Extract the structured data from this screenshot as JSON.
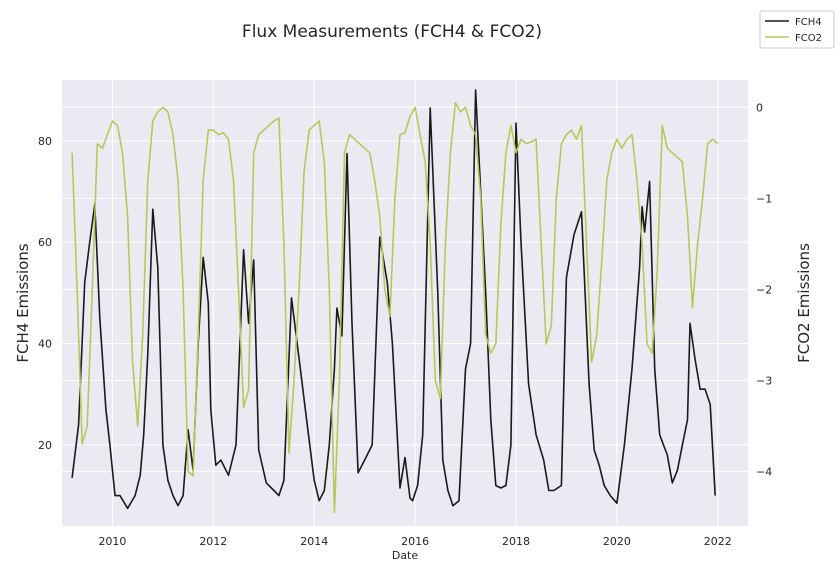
{
  "chart_data": {
    "type": "line",
    "title": "Flux Measurements (FCH4 & FCO2)",
    "xlabel": "Date",
    "ylabel_left": "FCH4 Emissions",
    "ylabel_right": "FCO2 Emissions",
    "xlim": [
      2009.0,
      2022.6
    ],
    "ylim_left": [
      4,
      92
    ],
    "ylim_right": [
      -4.6,
      0.3
    ],
    "x_ticks": [
      2010,
      2012,
      2014,
      2016,
      2018,
      2020,
      2022
    ],
    "y_ticks_left": [
      20,
      40,
      60,
      80
    ],
    "y_ticks_right": [
      0,
      -1,
      -2,
      -3,
      -4
    ],
    "grid": true,
    "legend_position": "top-right",
    "colors": {
      "background": "#eaeaf2",
      "grid": "#ffffff",
      "FCH4": "#1a1a1a",
      "FCO2": "#b5c95a"
    },
    "series": [
      {
        "name": "FCH4",
        "axis": "left",
        "x": [
          2009.2,
          2009.33,
          2009.45,
          2009.55,
          2009.65,
          2009.75,
          2009.87,
          2009.95,
          2010.05,
          2010.15,
          2010.3,
          2010.45,
          2010.55,
          2010.62,
          2010.7,
          2010.8,
          2010.9,
          2011.0,
          2011.1,
          2011.2,
          2011.3,
          2011.4,
          2011.5,
          2011.6,
          2011.7,
          2011.8,
          2011.9,
          2011.95,
          2012.05,
          2012.15,
          2012.3,
          2012.45,
          2012.6,
          2012.7,
          2012.8,
          2012.9,
          2013.05,
          2013.2,
          2013.3,
          2013.4,
          2013.55,
          2013.7,
          2013.85,
          2014.0,
          2014.1,
          2014.2,
          2014.3,
          2014.4,
          2014.45,
          2014.55,
          2014.65,
          2014.75,
          2014.87,
          2015.0,
          2015.15,
          2015.3,
          2015.45,
          2015.55,
          2015.7,
          2015.8,
          2015.9,
          2015.95,
          2016.05,
          2016.15,
          2016.3,
          2016.45,
          2016.55,
          2016.65,
          2016.75,
          2016.87,
          2017.0,
          2017.1,
          2017.2,
          2017.3,
          2017.4,
          2017.5,
          2017.6,
          2017.7,
          2017.8,
          2017.9,
          2018.0,
          2018.1,
          2018.25,
          2018.4,
          2018.55,
          2018.65,
          2018.75,
          2018.9,
          2019.0,
          2019.15,
          2019.3,
          2019.45,
          2019.55,
          2019.65,
          2019.75,
          2019.87,
          2020.0,
          2020.15,
          2020.3,
          2020.45,
          2020.5,
          2020.55,
          2020.65,
          2020.75,
          2020.85,
          2021.0,
          2021.1,
          2021.2,
          2021.3,
          2021.4,
          2021.45,
          2021.55,
          2021.65,
          2021.75,
          2021.85,
          2021.95
        ],
        "values": [
          13.5,
          24,
          52,
          60,
          67.5,
          45,
          27,
          20,
          10,
          10,
          7.5,
          10,
          14,
          22,
          38,
          66.5,
          55,
          20,
          13,
          10,
          8,
          10,
          23,
          15,
          40,
          57,
          48,
          27,
          16,
          17,
          14,
          20,
          58.5,
          44,
          56.5,
          19,
          12.5,
          11,
          10,
          13,
          49,
          37,
          25,
          13,
          9,
          11,
          20,
          35,
          47,
          41.5,
          77.5,
          44,
          14.5,
          17,
          20,
          61,
          52,
          40,
          11.5,
          17.5,
          9.5,
          9,
          12,
          22,
          86.5,
          50,
          17,
          11,
          8,
          9,
          35,
          40,
          90,
          70,
          50,
          25,
          12,
          11.5,
          12,
          20,
          83.5,
          60,
          32,
          22,
          17,
          11,
          11,
          12,
          53,
          61.5,
          66,
          32,
          19,
          16,
          12,
          10,
          8.5,
          20,
          35,
          55,
          67,
          62,
          72,
          35,
          22,
          18,
          12.5,
          15,
          20,
          25,
          44,
          37,
          31,
          31,
          28,
          10
        ]
      },
      {
        "name": "FCO2",
        "axis": "right",
        "x": [
          2009.2,
          2009.3,
          2009.4,
          2009.5,
          2009.6,
          2009.7,
          2009.8,
          2009.9,
          2010.0,
          2010.1,
          2010.2,
          2010.3,
          2010.4,
          2010.5,
          2010.6,
          2010.7,
          2010.8,
          2010.9,
          2011.0,
          2011.1,
          2011.2,
          2011.3,
          2011.4,
          2011.5,
          2011.6,
          2011.7,
          2011.8,
          2011.9,
          2012.0,
          2012.1,
          2012.2,
          2012.3,
          2012.4,
          2012.5,
          2012.6,
          2012.7,
          2012.8,
          2012.9,
          2013.0,
          2013.1,
          2013.2,
          2013.3,
          2013.4,
          2013.5,
          2013.6,
          2013.7,
          2013.8,
          2013.9,
          2014.0,
          2014.1,
          2014.2,
          2014.3,
          2014.4,
          2014.5,
          2014.6,
          2014.7,
          2014.8,
          2014.9,
          2015.0,
          2015.1,
          2015.2,
          2015.3,
          2015.4,
          2015.5,
          2015.6,
          2015.7,
          2015.8,
          2015.9,
          2016.0,
          2016.1,
          2016.2,
          2016.3,
          2016.4,
          2016.5,
          2016.6,
          2016.7,
          2016.8,
          2016.9,
          2017.0,
          2017.1,
          2017.2,
          2017.3,
          2017.4,
          2017.5,
          2017.6,
          2017.7,
          2017.8,
          2017.9,
          2018.0,
          2018.1,
          2018.2,
          2018.3,
          2018.4,
          2018.5,
          2018.6,
          2018.7,
          2018.8,
          2018.9,
          2019.0,
          2019.1,
          2019.2,
          2019.3,
          2019.4,
          2019.5,
          2019.6,
          2019.7,
          2019.8,
          2019.9,
          2020.0,
          2020.1,
          2020.2,
          2020.3,
          2020.4,
          2020.5,
          2020.6,
          2020.7,
          2020.8,
          2020.9,
          2021.0,
          2021.1,
          2021.2,
          2021.3,
          2021.4,
          2021.5,
          2021.6,
          2021.7,
          2021.8,
          2021.9,
          2022.0
        ],
        "values": [
          -0.5,
          -2.0,
          -3.7,
          -3.5,
          -2.0,
          -0.4,
          -0.45,
          -0.3,
          -0.15,
          -0.2,
          -0.5,
          -1.2,
          -2.8,
          -3.5,
          -2.5,
          -0.8,
          -0.15,
          -0.05,
          0.0,
          -0.05,
          -0.3,
          -0.8,
          -2.0,
          -4.0,
          -4.05,
          -2.5,
          -0.8,
          -0.25,
          -0.25,
          -0.3,
          -0.28,
          -0.35,
          -0.8,
          -2.0,
          -3.3,
          -3.1,
          -0.5,
          -0.3,
          -0.25,
          -0.2,
          -0.15,
          -0.12,
          -1.5,
          -3.8,
          -3.0,
          -2.0,
          -0.7,
          -0.25,
          -0.2,
          -0.15,
          -0.6,
          -2.0,
          -4.45,
          -3.0,
          -0.5,
          -0.3,
          -0.35,
          -0.4,
          -0.45,
          -0.5,
          -0.8,
          -1.2,
          -2.0,
          -2.3,
          -1.0,
          -0.3,
          -0.28,
          -0.1,
          0.0,
          -0.3,
          -0.6,
          -1.5,
          -3.0,
          -3.2,
          -1.5,
          -0.5,
          0.05,
          -0.05,
          0.0,
          -0.2,
          -0.3,
          -1.0,
          -2.5,
          -2.7,
          -2.6,
          -1.3,
          -0.5,
          -0.2,
          -0.5,
          -0.35,
          -0.4,
          -0.38,
          -0.35,
          -1.5,
          -2.6,
          -2.4,
          -1.0,
          -0.4,
          -0.3,
          -0.25,
          -0.35,
          -0.2,
          -1.5,
          -2.8,
          -2.5,
          -1.7,
          -0.8,
          -0.5,
          -0.35,
          -0.45,
          -0.35,
          -0.3,
          -0.8,
          -1.5,
          -2.6,
          -2.7,
          -1.8,
          -0.2,
          -0.45,
          -0.5,
          -0.55,
          -0.6,
          -1.2,
          -2.2,
          -1.5,
          -1.0,
          -0.4,
          -0.35,
          -0.4
        ]
      }
    ]
  }
}
